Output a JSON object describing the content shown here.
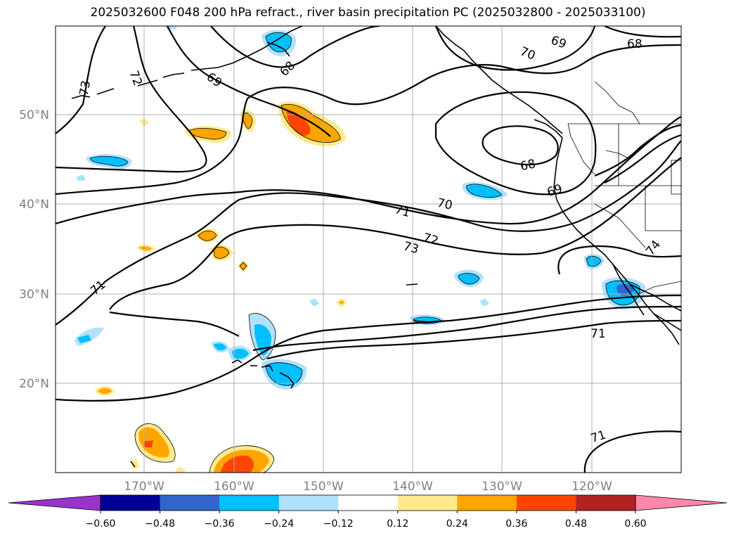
{
  "title": "2025032600 F048 200 hPa refract., river basin precipitation PC (2025032800 - 2025033100)",
  "lon_labels": [
    "170°W",
    "160°W",
    "150°W",
    "140°W",
    "130°W",
    "120°W"
  ],
  "lat_labels": [
    "50°N",
    "40°N",
    "30°N",
    "20°N"
  ],
  "contour_labels": [
    "73",
    "72",
    "69",
    "68",
    "69",
    "70",
    "68",
    "68",
    "69",
    "70",
    "71",
    "72",
    "73",
    "71",
    "74",
    "71",
    "71"
  ],
  "colorbar": {
    "colors": [
      "#9933cc",
      "#000099",
      "#3366cc",
      "#00bfff",
      "#b0e2ff",
      "#ffffff",
      "#ffea8c",
      "#ffa500",
      "#ff4500",
      "#b22222",
      "#ff88aa"
    ],
    "tick_labels": [
      "−0.60",
      "−0.48",
      "−0.36",
      "−0.24",
      "−0.12",
      "0.12",
      "0.24",
      "0.36",
      "0.48",
      "0.60"
    ]
  }
}
